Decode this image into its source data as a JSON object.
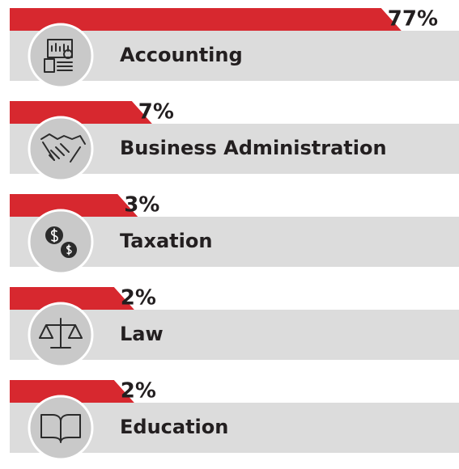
{
  "chart_data": {
    "type": "bar",
    "categories": [
      "Accounting",
      "Business Administration",
      "Taxation",
      "Law",
      "Education"
    ],
    "values": [
      77,
      7,
      3,
      2,
      2
    ],
    "value_labels": [
      "77%",
      "7%",
      "3%",
      "2%",
      "2%"
    ],
    "color": "#d7282f"
  }
}
